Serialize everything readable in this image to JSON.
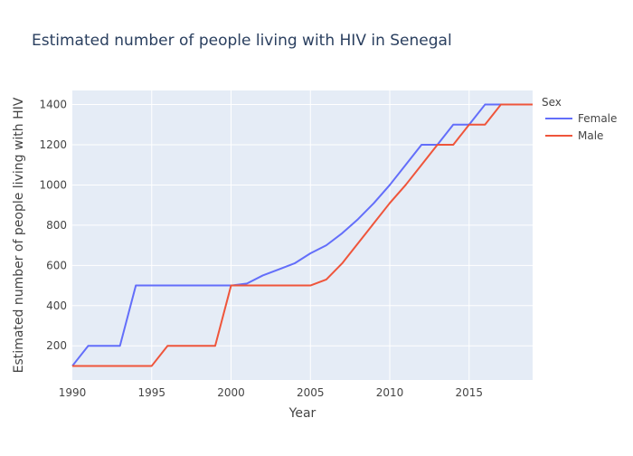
{
  "chart_data": {
    "type": "line",
    "title": "Estimated number of people living with HIV in Senegal",
    "xlabel": "Year",
    "ylabel": "Estimated number of people living with HIV",
    "xlim": [
      1990,
      2019
    ],
    "ylim": [
      30,
      1470
    ],
    "xticks": [
      1990,
      1995,
      2000,
      2005,
      2010,
      2015
    ],
    "yticks": [
      200,
      400,
      600,
      800,
      1000,
      1200,
      1400
    ],
    "grid": true,
    "legend_title": "Sex",
    "legend_position": "top-right",
    "x": [
      1990,
      1991,
      1992,
      1993,
      1994,
      1995,
      1996,
      1997,
      1998,
      1999,
      2000,
      2001,
      2002,
      2003,
      2004,
      2005,
      2006,
      2007,
      2008,
      2009,
      2010,
      2011,
      2012,
      2013,
      2014,
      2015,
      2016,
      2017,
      2018,
      2019
    ],
    "series": [
      {
        "name": "Female",
        "color": "#636efa",
        "values": [
          100,
          200,
          200,
          200,
          500,
          500,
          500,
          500,
          500,
          500,
          500,
          510,
          550,
          580,
          610,
          660,
          700,
          760,
          830,
          910,
          1000,
          1100,
          1200,
          1200,
          1300,
          1300,
          1400,
          1400,
          1400,
          1400
        ]
      },
      {
        "name": "Male",
        "color": "#EF553B",
        "values": [
          100,
          100,
          100,
          100,
          100,
          100,
          200,
          200,
          200,
          200,
          500,
          500,
          500,
          500,
          500,
          500,
          530,
          610,
          710,
          810,
          910,
          1000,
          1100,
          1200,
          1200,
          1300,
          1300,
          1400,
          1400,
          1400
        ]
      }
    ]
  },
  "colors": {
    "plot_background": "#E5ECF6",
    "grid": "#ffffff",
    "text": "#444444",
    "title_text": "#2a3f5f"
  }
}
